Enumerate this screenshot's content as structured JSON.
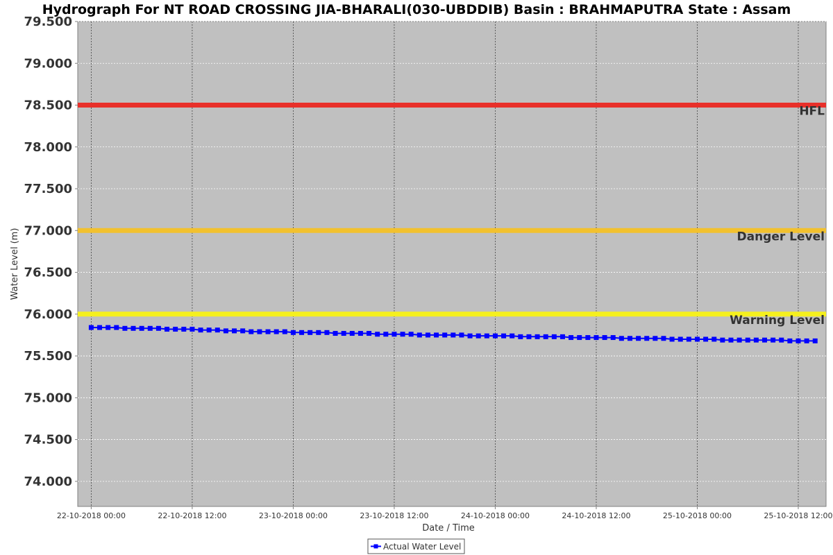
{
  "chart_data": {
    "type": "line",
    "title": "Hydrograph For NT ROAD CROSSING JIA-BHARALI(030-UBDDIB) Basin : BRAHMAPUTRA State : Assam",
    "xlabel": "Date / Time",
    "ylabel": "Water Level (m)",
    "ylim": [
      73.7,
      79.5
    ],
    "y_ticks": [
      74.0,
      74.5,
      75.0,
      75.5,
      76.0,
      76.5,
      77.0,
      77.5,
      78.0,
      78.5,
      79.0,
      79.5
    ],
    "y_tick_labels": [
      "74.000",
      "74.500",
      "75.000",
      "75.500",
      "76.000",
      "76.500",
      "77.000",
      "77.500",
      "78.000",
      "78.500",
      "79.000",
      "79.500"
    ],
    "x_range_hours": [
      -1.6,
      87.3
    ],
    "x_ticks_hours": [
      0,
      12,
      24,
      36,
      48,
      60,
      72,
      84
    ],
    "x_tick_labels": [
      "22-10-2018 00:00",
      "22-10-2018 12:00",
      "23-10-2018 00:00",
      "23-10-2018 12:00",
      "24-10-2018 00:00",
      "24-10-2018 12:00",
      "25-10-2018 00:00",
      "25-10-2018 12:00"
    ],
    "grid": true,
    "legend_position": "bottom-center",
    "reference_lines": [
      {
        "label": "HFL",
        "value": 78.5,
        "color": "#e8302a"
      },
      {
        "label": "Danger Level",
        "value": 77.0,
        "color": "#f2c12e"
      },
      {
        "label": "Warning Level",
        "value": 76.0,
        "color": "#f5f01e"
      }
    ],
    "series": [
      {
        "name": "Actual Water Level",
        "color": "#0000ff",
        "x_hours": [
          0,
          1,
          2,
          3,
          4,
          5,
          6,
          7,
          8,
          9,
          10,
          11,
          12,
          13,
          14,
          15,
          16,
          17,
          18,
          19,
          20,
          21,
          22,
          23,
          24,
          25,
          26,
          27,
          28,
          29,
          30,
          31,
          32,
          33,
          34,
          35,
          36,
          37,
          38,
          39,
          40,
          41,
          42,
          43,
          44,
          45,
          46,
          47,
          48,
          49,
          50,
          51,
          52,
          53,
          54,
          55,
          56,
          57,
          58,
          59,
          60,
          61,
          62,
          63,
          64,
          65,
          66,
          67,
          68,
          69,
          70,
          71,
          72,
          73,
          74,
          75,
          76,
          77,
          78,
          79,
          80,
          81,
          82,
          83,
          84,
          85,
          86
        ],
        "values": [
          75.84,
          75.84,
          75.84,
          75.84,
          75.83,
          75.83,
          75.83,
          75.83,
          75.83,
          75.82,
          75.82,
          75.82,
          75.82,
          75.81,
          75.81,
          75.81,
          75.8,
          75.8,
          75.8,
          75.79,
          75.79,
          75.79,
          75.79,
          75.79,
          75.78,
          75.78,
          75.78,
          75.78,
          75.78,
          75.77,
          75.77,
          75.77,
          75.77,
          75.77,
          75.76,
          75.76,
          75.76,
          75.76,
          75.76,
          75.75,
          75.75,
          75.75,
          75.75,
          75.75,
          75.75,
          75.74,
          75.74,
          75.74,
          75.74,
          75.74,
          75.74,
          75.73,
          75.73,
          75.73,
          75.73,
          75.73,
          75.73,
          75.72,
          75.72,
          75.72,
          75.72,
          75.72,
          75.72,
          75.71,
          75.71,
          75.71,
          75.71,
          75.71,
          75.71,
          75.7,
          75.7,
          75.7,
          75.7,
          75.7,
          75.7,
          75.69,
          75.69,
          75.69,
          75.69,
          75.69,
          75.69,
          75.69,
          75.69,
          75.68,
          75.68,
          75.68,
          75.68
        ]
      }
    ]
  }
}
